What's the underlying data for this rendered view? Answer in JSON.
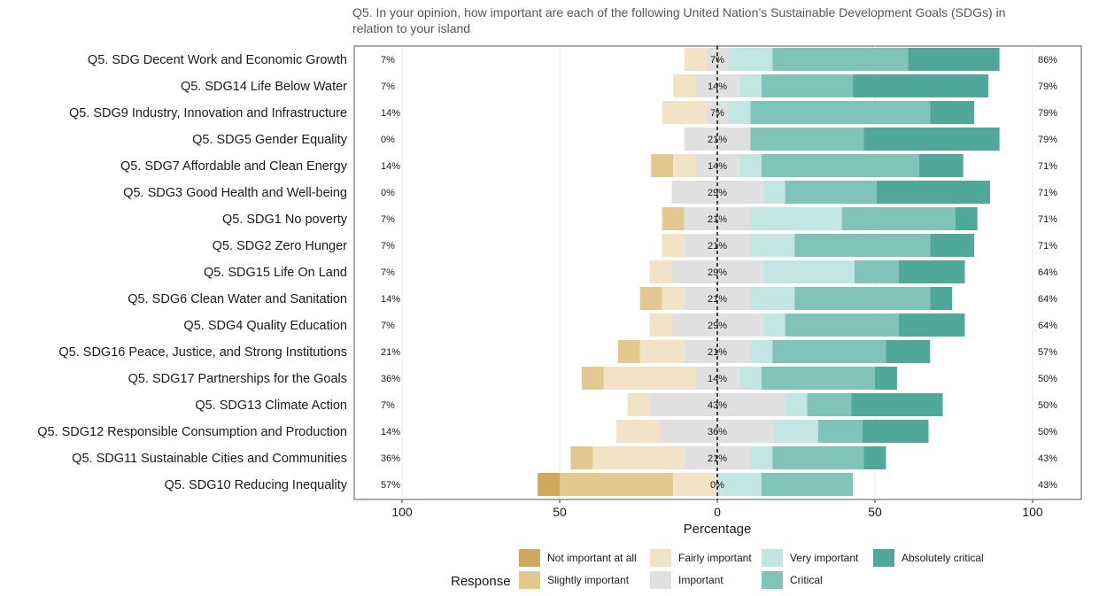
{
  "chart_data": {
    "type": "bar",
    "subtitle_lines": [
      "Q5. In your opinion, how important are each of the following United Nation’s Sustainable Development Goals (SDGs) in",
      "relation to your island"
    ],
    "xlabel": "Percentage",
    "xlim": [
      -100,
      100
    ],
    "xticks": [
      {
        "value": -100,
        "label": "100"
      },
      {
        "value": -50,
        "label": "50"
      },
      {
        "value": 0,
        "label": "0"
      },
      {
        "value": 50,
        "label": "50"
      },
      {
        "value": 100,
        "label": "100"
      }
    ],
    "legend_title": "Response",
    "legend_position": "bottom",
    "series": [
      {
        "name": "Not important at all",
        "color": "#d1a95c"
      },
      {
        "name": "Slightly important",
        "color": "#e3c88f"
      },
      {
        "name": "Fairly important",
        "color": "#f2e3c6"
      },
      {
        "name": "Important",
        "color": "#e0e0e0"
      },
      {
        "name": "Very important",
        "color": "#c2e6e1"
      },
      {
        "name": "Critical",
        "color": "#80c3b9"
      },
      {
        "name": "Absolutely critical",
        "color": "#4fa89a"
      }
    ],
    "categories": [
      {
        "label": "Q5. SDG Decent Work and Economic Growth",
        "values": [
          0,
          0,
          7,
          7,
          14,
          43,
          29
        ],
        "low": "7%",
        "mid": "7%",
        "high": "86%"
      },
      {
        "label": "Q5. SDG14 Life Below Water",
        "values": [
          0,
          0,
          7,
          14,
          7,
          29,
          43
        ],
        "low": "7%",
        "mid": "14%",
        "high": "79%"
      },
      {
        "label": "Q5. SDG9 Industry, Innovation and Infrastructure",
        "values": [
          0,
          0,
          14,
          7,
          7,
          57,
          14
        ],
        "low": "14%",
        "mid": "7%",
        "high": "79%"
      },
      {
        "label": "Q5. SDG5 Gender Equality",
        "values": [
          0,
          0,
          0,
          21,
          0,
          36,
          43
        ],
        "low": "0%",
        "mid": "21%",
        "high": "79%"
      },
      {
        "label": "Q5. SDG7 Affordable and Clean Energy",
        "values": [
          0,
          7,
          7,
          14,
          7,
          50,
          14
        ],
        "low": "14%",
        "mid": "14%",
        "high": "71%"
      },
      {
        "label": "Q5. SDG3 Good Health and Well-being",
        "values": [
          0,
          0,
          0,
          29,
          7,
          29,
          36
        ],
        "low": "0%",
        "mid": "29%",
        "high": "71%"
      },
      {
        "label": "Q5. SDG1 No poverty",
        "values": [
          0,
          7,
          0,
          21,
          29,
          36,
          7
        ],
        "low": "7%",
        "mid": "21%",
        "high": "71%"
      },
      {
        "label": "Q5. SDG2 Zero Hunger",
        "values": [
          0,
          0,
          7,
          21,
          14,
          43,
          14
        ],
        "low": "7%",
        "mid": "21%",
        "high": "71%"
      },
      {
        "label": "Q5. SDG15 Life On Land",
        "values": [
          0,
          0,
          7,
          29,
          29,
          14,
          21
        ],
        "low": "7%",
        "mid": "29%",
        "high": "64%"
      },
      {
        "label": "Q5. SDG6 Clean Water and Sanitation",
        "values": [
          0,
          7,
          7,
          21,
          14,
          43,
          7
        ],
        "low": "14%",
        "mid": "21%",
        "high": "64%"
      },
      {
        "label": "Q5. SDG4 Quality Education",
        "values": [
          0,
          0,
          7,
          29,
          7,
          36,
          21
        ],
        "low": "7%",
        "mid": "29%",
        "high": "64%"
      },
      {
        "label": "Q5. SDG16 Peace, Justice, and Strong Institutions",
        "values": [
          0,
          7,
          14,
          21,
          7,
          36,
          14
        ],
        "low": "21%",
        "mid": "21%",
        "high": "57%"
      },
      {
        "label": "Q5. SDG17 Partnerships for the Goals",
        "values": [
          0,
          7,
          29,
          14,
          7,
          36,
          7
        ],
        "low": "36%",
        "mid": "14%",
        "high": "50%"
      },
      {
        "label": "Q5. SDG13 Climate Action",
        "values": [
          0,
          0,
          7,
          43,
          7,
          14,
          29
        ],
        "low": "7%",
        "mid": "43%",
        "high": "50%"
      },
      {
        "label": "Q5. SDG12 Responsible Consumption and Production",
        "values": [
          0,
          0,
          14,
          36,
          14,
          14,
          21
        ],
        "low": "14%",
        "mid": "36%",
        "high": "50%"
      },
      {
        "label": "Q5. SDG11 Sustainable Cities and Communities",
        "values": [
          0,
          7,
          29,
          21,
          7,
          29,
          7
        ],
        "low": "36%",
        "mid": "21%",
        "high": "43%"
      },
      {
        "label": "Q5. SDG10 Reducing Inequality",
        "values": [
          7,
          36,
          14,
          0,
          14,
          29,
          0
        ],
        "low": "57%",
        "mid": "0%",
        "high": "43%"
      }
    ]
  }
}
